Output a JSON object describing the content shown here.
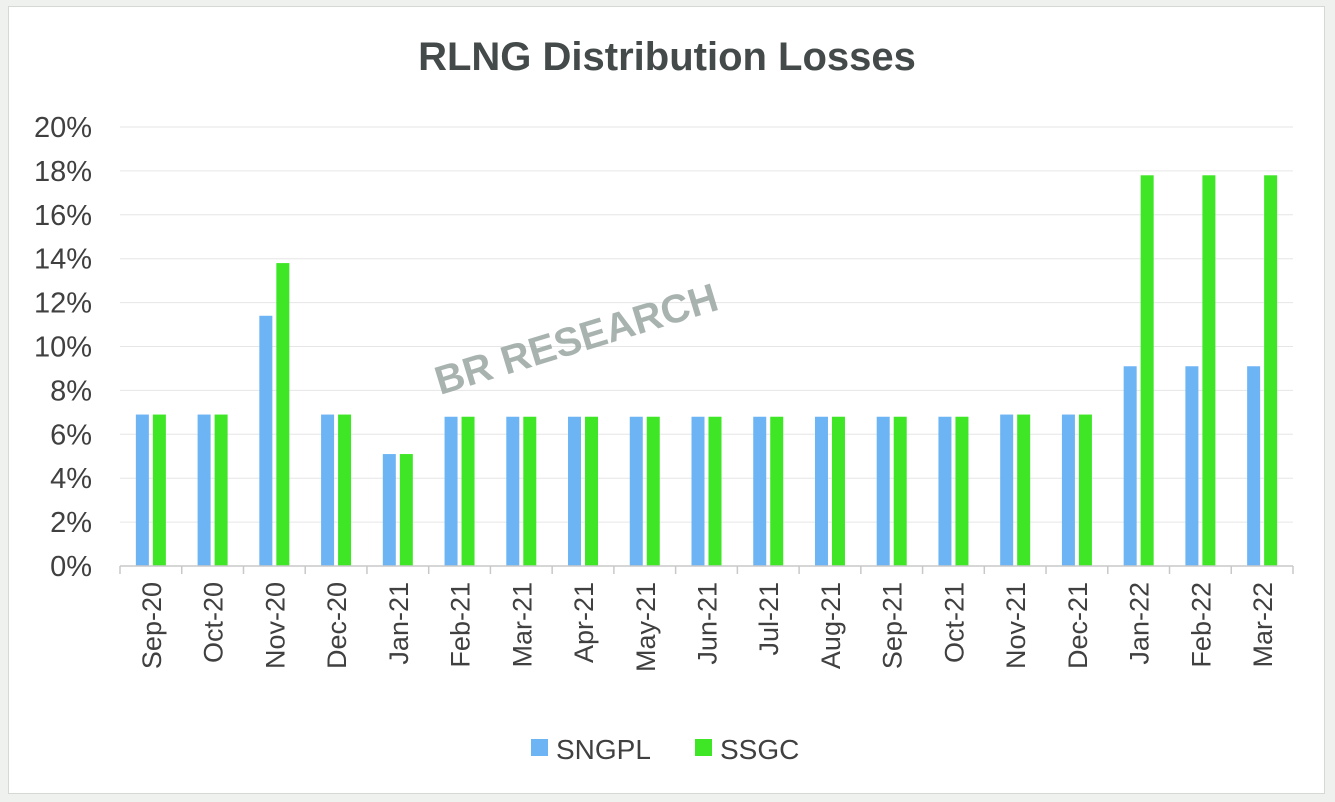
{
  "chart_data": {
    "type": "bar",
    "title": "RLNG Distribution Losses",
    "watermark": "BR RESEARCH",
    "categories": [
      "Sep-20",
      "Oct-20",
      "Nov-20",
      "Dec-20",
      "Jan-21",
      "Feb-21",
      "Mar-21",
      "Apr-21",
      "May-21",
      "Jun-21",
      "Jul-21",
      "Aug-21",
      "Sep-21",
      "Oct-21",
      "Nov-21",
      "Dec-21",
      "Jan-22",
      "Feb-22",
      "Mar-22"
    ],
    "series": [
      {
        "name": "SNGPL",
        "color": "#6cb4f4",
        "values": [
          6.9,
          6.9,
          11.4,
          6.9,
          5.1,
          6.8,
          6.8,
          6.8,
          6.8,
          6.8,
          6.8,
          6.8,
          6.8,
          6.8,
          6.9,
          6.9,
          9.1,
          9.1,
          9.1
        ]
      },
      {
        "name": "SSGC",
        "color": "#3ee626",
        "values": [
          6.9,
          6.9,
          13.8,
          6.9,
          5.1,
          6.8,
          6.8,
          6.8,
          6.8,
          6.8,
          6.8,
          6.8,
          6.8,
          6.8,
          6.9,
          6.9,
          17.8,
          17.8,
          17.8
        ]
      }
    ],
    "yticks": [
      "0%",
      "2%",
      "4%",
      "6%",
      "8%",
      "10%",
      "12%",
      "14%",
      "16%",
      "18%",
      "20%"
    ],
    "ylim": [
      0,
      20
    ],
    "xlabel": "",
    "ylabel": "",
    "grid": true,
    "legend_position": "bottom"
  }
}
